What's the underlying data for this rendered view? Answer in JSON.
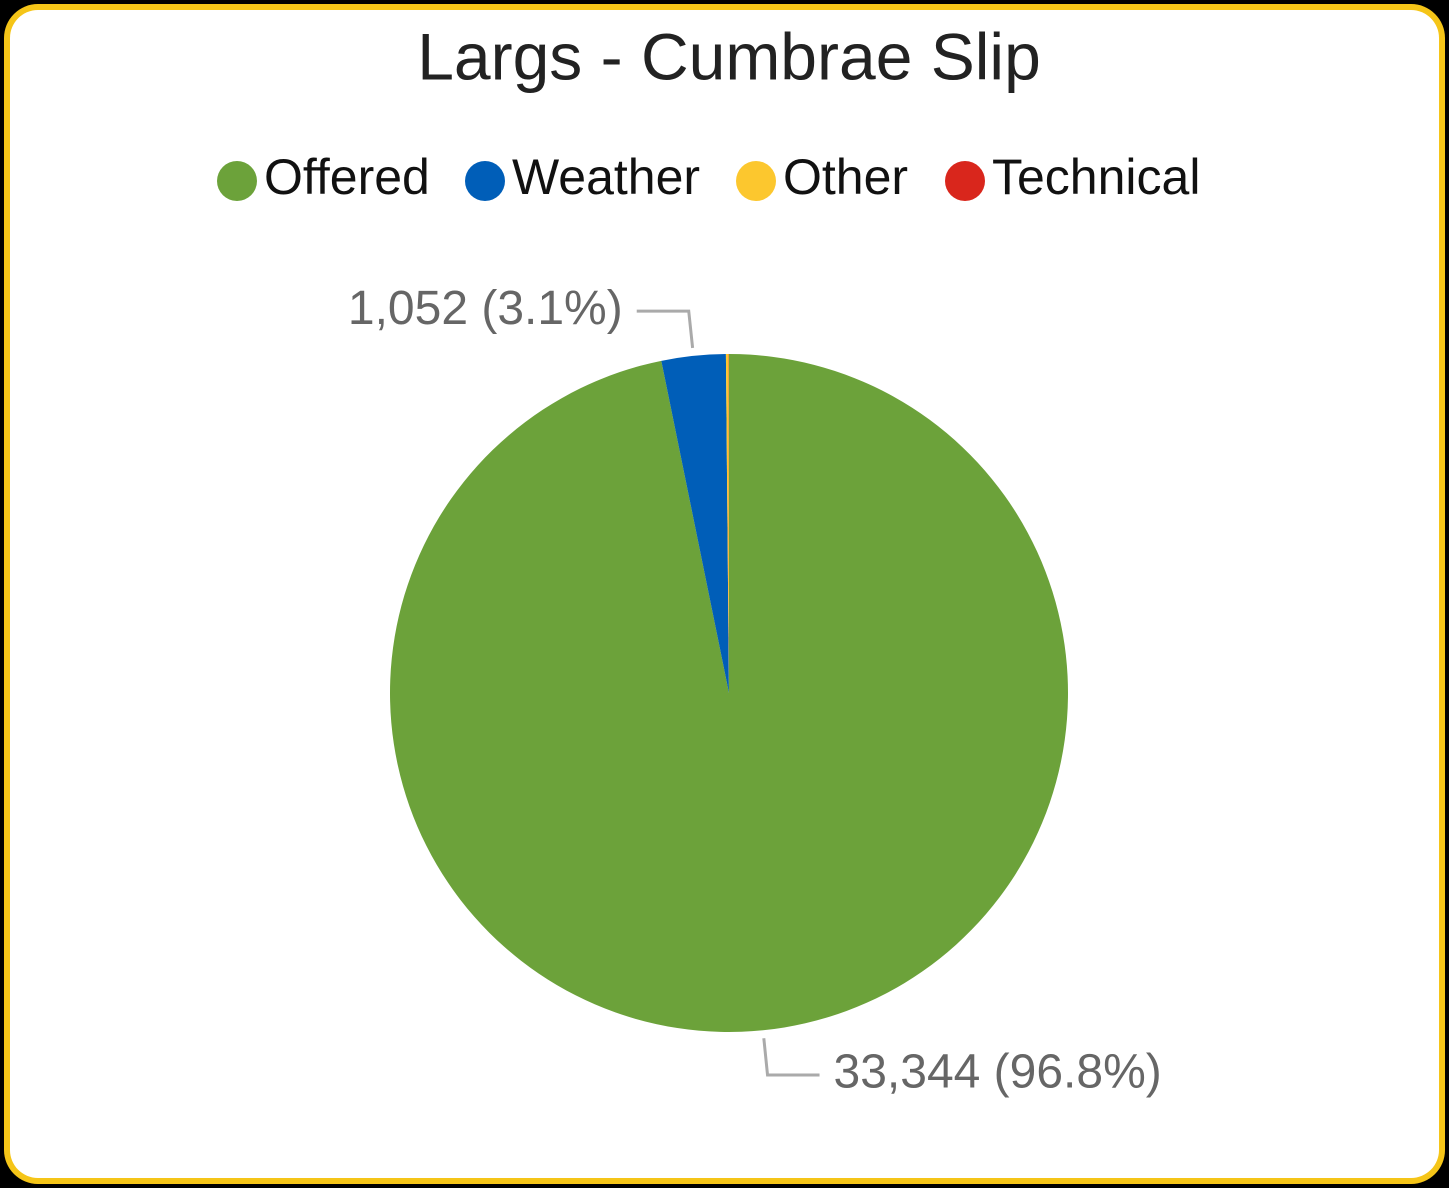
{
  "chart_data": {
    "type": "pie",
    "title": "Largs - Cumbrae Slip",
    "categories": [
      "Offered",
      "Weather",
      "Other",
      "Technical"
    ],
    "values": [
      33344,
      1052,
      45,
      5
    ],
    "value_labels": [
      "33,344 (96.8%)",
      "1,052 (3.1%)",
      null,
      null
    ],
    "colors": [
      "#6ca23a",
      "#005eb8",
      "#fcc72e",
      "#d9261c"
    ],
    "legend": "top"
  }
}
